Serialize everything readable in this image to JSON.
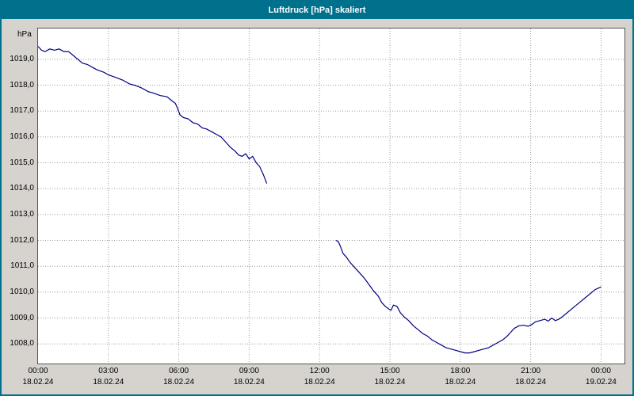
{
  "window": {
    "title": "Luftdruck [hPa] skaliert"
  },
  "colors": {
    "titlebar": "#00718C",
    "window_border": "#00718C",
    "background": "#D6D3CE",
    "plot_background": "#FFFFFF",
    "grid": "#9C9C9C",
    "line": "#000080"
  },
  "chart_data": {
    "type": "line",
    "title": "Luftdruck [hPa] skaliert",
    "ylabel": "hPa",
    "xlabel": "",
    "grid": true,
    "legend": "none",
    "line_color": "#000080",
    "ylim": [
      1007.24,
      1020.19
    ],
    "xlim_hours": [
      0,
      25
    ],
    "y_ticks": [
      {
        "label": "1019,0",
        "value": 1019
      },
      {
        "label": "1018,0",
        "value": 1018
      },
      {
        "label": "1017,0",
        "value": 1017
      },
      {
        "label": "1016,0",
        "value": 1016
      },
      {
        "label": "1015,0",
        "value": 1015
      },
      {
        "label": "1014,0",
        "value": 1014
      },
      {
        "label": "1013,0",
        "value": 1013
      },
      {
        "label": "1012,0",
        "value": 1012
      },
      {
        "label": "1011,0",
        "value": 1011
      },
      {
        "label": "1010,0",
        "value": 1010
      },
      {
        "label": "1009,0",
        "value": 1009
      },
      {
        "label": "1008,0",
        "value": 1008
      }
    ],
    "x_ticks": [
      {
        "time": "00:00",
        "date": "18.02.24",
        "hour": 0
      },
      {
        "time": "03:00",
        "date": "18.02.24",
        "hour": 3
      },
      {
        "time": "06:00",
        "date": "18.02.24",
        "hour": 6
      },
      {
        "time": "09:00",
        "date": "18.02.24",
        "hour": 9
      },
      {
        "time": "12:00",
        "date": "18.02.24",
        "hour": 12
      },
      {
        "time": "15:00",
        "date": "18.02.24",
        "hour": 15
      },
      {
        "time": "18:00",
        "date": "18.02.24",
        "hour": 18
      },
      {
        "time": "21:00",
        "date": "18.02.24",
        "hour": 21
      },
      {
        "time": "00:00",
        "date": "19.02.24",
        "hour": 24
      }
    ],
    "series": [
      {
        "name": "Luftdruck",
        "unit": "hPa",
        "segments": [
          [
            [
              0.0,
              1019.5
            ],
            [
              0.15,
              1019.35
            ],
            [
              0.3,
              1019.3
            ],
            [
              0.5,
              1019.4
            ],
            [
              0.7,
              1019.35
            ],
            [
              0.9,
              1019.4
            ],
            [
              1.1,
              1019.3
            ],
            [
              1.3,
              1019.3
            ],
            [
              1.5,
              1019.15
            ],
            [
              1.7,
              1019.0
            ],
            [
              1.9,
              1018.85
            ],
            [
              2.1,
              1018.8
            ],
            [
              2.3,
              1018.7
            ],
            [
              2.5,
              1018.6
            ],
            [
              2.8,
              1018.5
            ],
            [
              3.0,
              1018.4
            ],
            [
              3.3,
              1018.3
            ],
            [
              3.6,
              1018.2
            ],
            [
              3.9,
              1018.05
            ],
            [
              4.1,
              1018.0
            ],
            [
              4.4,
              1017.9
            ],
            [
              4.7,
              1017.75
            ],
            [
              4.9,
              1017.7
            ],
            [
              5.2,
              1017.6
            ],
            [
              5.5,
              1017.55
            ],
            [
              5.7,
              1017.4
            ],
            [
              5.85,
              1017.3
            ],
            [
              5.95,
              1017.1
            ],
            [
              6.05,
              1016.85
            ],
            [
              6.2,
              1016.75
            ],
            [
              6.4,
              1016.7
            ],
            [
              6.6,
              1016.55
            ],
            [
              6.8,
              1016.5
            ],
            [
              7.0,
              1016.35
            ],
            [
              7.2,
              1016.3
            ],
            [
              7.4,
              1016.2
            ],
            [
              7.6,
              1016.1
            ],
            [
              7.8,
              1016.0
            ],
            [
              8.0,
              1015.8
            ],
            [
              8.2,
              1015.6
            ],
            [
              8.4,
              1015.45
            ],
            [
              8.55,
              1015.3
            ],
            [
              8.7,
              1015.25
            ],
            [
              8.85,
              1015.35
            ],
            [
              9.0,
              1015.15
            ],
            [
              9.15,
              1015.25
            ],
            [
              9.3,
              1015.0
            ],
            [
              9.45,
              1014.85
            ],
            [
              9.6,
              1014.55
            ],
            [
              9.75,
              1014.2
            ]
          ],
          [
            [
              12.7,
              1012.0
            ],
            [
              12.8,
              1011.95
            ],
            [
              12.9,
              1011.75
            ],
            [
              13.0,
              1011.5
            ],
            [
              13.15,
              1011.35
            ],
            [
              13.3,
              1011.15
            ],
            [
              13.5,
              1010.95
            ],
            [
              13.7,
              1010.75
            ],
            [
              13.9,
              1010.55
            ],
            [
              14.1,
              1010.3
            ],
            [
              14.3,
              1010.05
            ],
            [
              14.5,
              1009.85
            ],
            [
              14.65,
              1009.6
            ],
            [
              14.8,
              1009.45
            ],
            [
              14.95,
              1009.35
            ],
            [
              15.05,
              1009.3
            ],
            [
              15.15,
              1009.5
            ],
            [
              15.3,
              1009.45
            ],
            [
              15.45,
              1009.2
            ],
            [
              15.6,
              1009.05
            ],
            [
              15.8,
              1008.9
            ],
            [
              16.0,
              1008.7
            ],
            [
              16.2,
              1008.55
            ],
            [
              16.4,
              1008.4
            ],
            [
              16.6,
              1008.3
            ],
            [
              16.8,
              1008.15
            ],
            [
              17.0,
              1008.05
            ],
            [
              17.2,
              1007.95
            ],
            [
              17.4,
              1007.85
            ],
            [
              17.6,
              1007.8
            ],
            [
              17.8,
              1007.75
            ],
            [
              18.0,
              1007.7
            ],
            [
              18.2,
              1007.65
            ],
            [
              18.4,
              1007.65
            ],
            [
              18.6,
              1007.7
            ],
            [
              18.8,
              1007.75
            ],
            [
              19.0,
              1007.8
            ],
            [
              19.2,
              1007.85
            ],
            [
              19.4,
              1007.95
            ],
            [
              19.6,
              1008.05
            ],
            [
              19.8,
              1008.15
            ],
            [
              20.0,
              1008.3
            ],
            [
              20.15,
              1008.45
            ],
            [
              20.3,
              1008.6
            ],
            [
              20.5,
              1008.7
            ],
            [
              20.7,
              1008.72
            ],
            [
              20.9,
              1008.68
            ],
            [
              21.05,
              1008.75
            ],
            [
              21.2,
              1008.85
            ],
            [
              21.4,
              1008.9
            ],
            [
              21.6,
              1008.95
            ],
            [
              21.75,
              1008.88
            ],
            [
              21.9,
              1009.0
            ],
            [
              22.05,
              1008.9
            ],
            [
              22.2,
              1008.95
            ],
            [
              22.35,
              1009.05
            ],
            [
              22.55,
              1009.2
            ],
            [
              22.75,
              1009.35
            ],
            [
              22.95,
              1009.5
            ],
            [
              23.15,
              1009.65
            ],
            [
              23.35,
              1009.8
            ],
            [
              23.55,
              1009.95
            ],
            [
              23.75,
              1010.1
            ],
            [
              24.0,
              1010.2
            ]
          ]
        ]
      }
    ]
  }
}
